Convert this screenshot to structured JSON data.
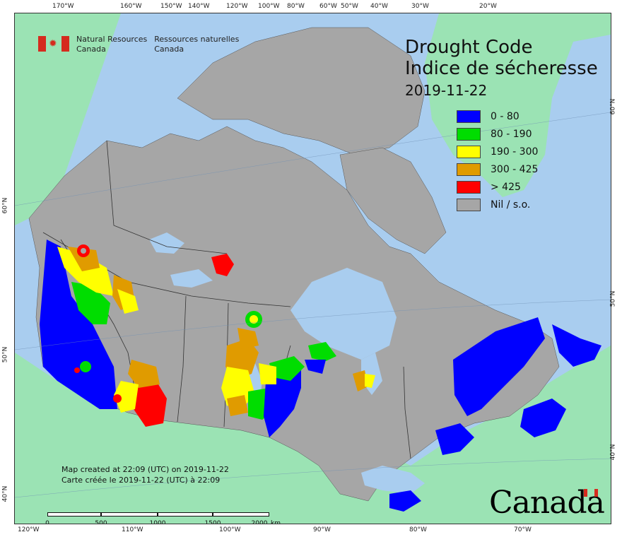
{
  "map": {
    "agency": {
      "en_line1": "Natural Resources",
      "en_line2": "Canada",
      "fr_line1": "Ressources naturelles",
      "fr_line2": "Canada"
    },
    "title": {
      "en": "Drought Code",
      "fr": "Indice de sécheresse",
      "date": "2019-11-22"
    },
    "legend": [
      {
        "label": "0 - 80",
        "color": "#0000ff"
      },
      {
        "label": "80 - 190",
        "color": "#00dd00"
      },
      {
        "label": "190 - 300",
        "color": "#ffff00"
      },
      {
        "label": "300 - 425",
        "color": "#e09b00"
      },
      {
        "label": "> 425",
        "color": "#ff0000"
      },
      {
        "label": "Nil / s.o.",
        "color": "#a6a6a6"
      }
    ],
    "credit": {
      "en": "Map created at 22:09 (UTC) on 2019-11-22",
      "fr": "Carte créée le 2019-11-22 (UTC) à 22:09"
    },
    "scale": {
      "labels": [
        "0",
        "500",
        "1000",
        "1500",
        "2000"
      ],
      "unit": "km"
    },
    "wordmark": "Canada",
    "ticks": {
      "top": [
        "170°W",
        "160°W",
        "150°W",
        "140°W",
        "120°W",
        "100°W",
        "80°W",
        "60°W",
        "50°W",
        "40°W",
        "30°W",
        "20°W"
      ],
      "bottom": [
        "120°W",
        "110°W",
        "100°W",
        "90°W",
        "80°W",
        "70°W"
      ],
      "left": [
        "60°N",
        "50°N",
        "40°N"
      ],
      "right": [
        "60°N",
        "50°N",
        "40°N"
      ]
    },
    "colors": {
      "water": "#a9cdef",
      "land_other": "#9be3b4",
      "nil": "#a6a6a6",
      "border": "#333333"
    }
  }
}
